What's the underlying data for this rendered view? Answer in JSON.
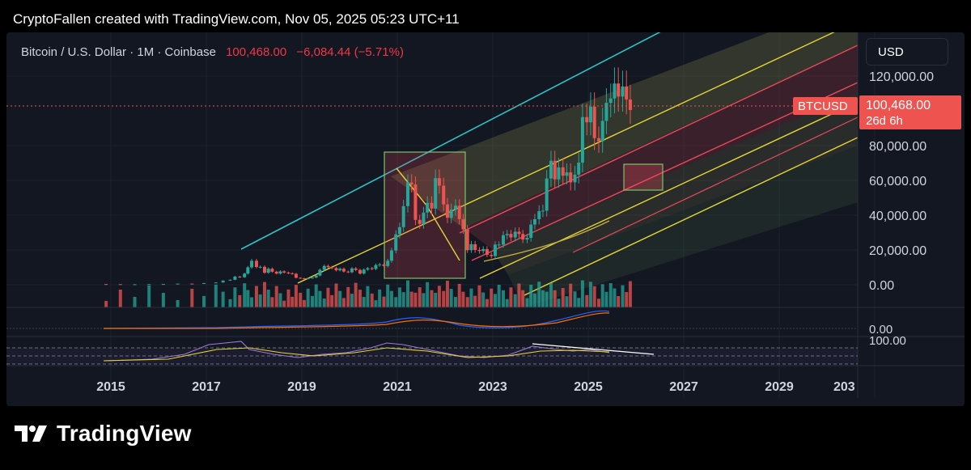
{
  "header": {
    "attribution": "CryptoFallen created with TradingView.com, Nov 05, 2025 05:23 UTC+11"
  },
  "legend": {
    "symbol_desc": "Bitcoin / U.S. Dollar · 1M · Coinbase",
    "last_price": "100,468.00",
    "change": "−6,084.44 (−5.71%)"
  },
  "currency_button": "USD",
  "price_tag": {
    "symbol": "BTCUSD",
    "price": "100,468.00",
    "countdown": "26d 6h"
  },
  "footer": {
    "brand": "TradingView"
  },
  "colors": {
    "up": "#26a69a",
    "down": "#ef5350",
    "cyan_line": "#2fc3c9",
    "yellow_line": "#e5d436",
    "red_line": "#e84b5a",
    "green_box": "#7cc46a"
  },
  "chart_data": {
    "type": "candlestick",
    "interval": "1M",
    "y_axis_labels": [
      "120,000.00",
      "80,000.00",
      "60,000.00",
      "40,000.00",
      "20,000.00",
      "0.00"
    ],
    "x_axis_labels": [
      "2015",
      "2017",
      "2019",
      "2021",
      "2023",
      "2025",
      "2027",
      "2029",
      "203"
    ],
    "ylim": [
      -10000,
      135000
    ],
    "macd_label": "0.00",
    "rsi_label": "100.00",
    "candles": [
      {
        "t": 2014.9,
        "o": 380,
        "c": 320
      },
      {
        "t": 2015.2,
        "o": 320,
        "c": 240
      },
      {
        "t": 2015.5,
        "o": 240,
        "c": 280
      },
      {
        "t": 2015.8,
        "o": 280,
        "c": 350
      },
      {
        "t": 2016.1,
        "o": 350,
        "c": 420
      },
      {
        "t": 2016.4,
        "o": 420,
        "c": 650
      },
      {
        "t": 2016.7,
        "o": 650,
        "c": 610
      },
      {
        "t": 2016.95,
        "o": 610,
        "c": 960
      },
      {
        "t": 2017.2,
        "o": 960,
        "c": 1300
      },
      {
        "t": 2017.35,
        "o": 1300,
        "c": 2400
      },
      {
        "t": 2017.5,
        "o": 2400,
        "c": 2850
      },
      {
        "t": 2017.6,
        "o": 2850,
        "c": 4700
      },
      {
        "t": 2017.7,
        "o": 4700,
        "c": 4300
      },
      {
        "t": 2017.8,
        "o": 4300,
        "c": 6400
      },
      {
        "t": 2017.87,
        "o": 6400,
        "c": 10000
      },
      {
        "t": 2017.95,
        "o": 10000,
        "c": 13800
      },
      {
        "t": 2018.05,
        "o": 13800,
        "c": 10200
      },
      {
        "t": 2018.13,
        "o": 10200,
        "c": 10300
      },
      {
        "t": 2018.22,
        "o": 10300,
        "c": 6900
      },
      {
        "t": 2018.3,
        "o": 6900,
        "c": 9200
      },
      {
        "t": 2018.38,
        "o": 9200,
        "c": 7500
      },
      {
        "t": 2018.47,
        "o": 7500,
        "c": 6400
      },
      {
        "t": 2018.55,
        "o": 6400,
        "c": 7700
      },
      {
        "t": 2018.63,
        "o": 7700,
        "c": 7000
      },
      {
        "t": 2018.72,
        "o": 7000,
        "c": 6600
      },
      {
        "t": 2018.8,
        "o": 6600,
        "c": 6300
      },
      {
        "t": 2018.88,
        "o": 6300,
        "c": 4000
      },
      {
        "t": 2018.97,
        "o": 4000,
        "c": 3700
      },
      {
        "t": 2019.05,
        "o": 3700,
        "c": 3400
      },
      {
        "t": 2019.13,
        "o": 3400,
        "c": 3800
      },
      {
        "t": 2019.22,
        "o": 3800,
        "c": 4100
      },
      {
        "t": 2019.3,
        "o": 4100,
        "c": 5300
      },
      {
        "t": 2019.38,
        "o": 5300,
        "c": 8600
      },
      {
        "t": 2019.47,
        "o": 8600,
        "c": 10800
      },
      {
        "t": 2019.55,
        "o": 10800,
        "c": 10100
      },
      {
        "t": 2019.63,
        "o": 10100,
        "c": 9600
      },
      {
        "t": 2019.72,
        "o": 9600,
        "c": 8300
      },
      {
        "t": 2019.8,
        "o": 8300,
        "c": 9200
      },
      {
        "t": 2019.88,
        "o": 9200,
        "c": 7600
      },
      {
        "t": 2019.97,
        "o": 7600,
        "c": 7200
      },
      {
        "t": 2020.05,
        "o": 7200,
        "c": 9400
      },
      {
        "t": 2020.13,
        "o": 9400,
        "c": 8500
      },
      {
        "t": 2020.22,
        "o": 8500,
        "c": 6400
      },
      {
        "t": 2020.3,
        "o": 6400,
        "c": 8700
      },
      {
        "t": 2020.38,
        "o": 8700,
        "c": 9500
      },
      {
        "t": 2020.47,
        "o": 9500,
        "c": 9100
      },
      {
        "t": 2020.55,
        "o": 9100,
        "c": 11300
      },
      {
        "t": 2020.63,
        "o": 11300,
        "c": 11700
      },
      {
        "t": 2020.72,
        "o": 11700,
        "c": 10800
      },
      {
        "t": 2020.8,
        "o": 10800,
        "c": 13800
      },
      {
        "t": 2020.88,
        "o": 13800,
        "c": 19700
      },
      {
        "t": 2020.97,
        "o": 19700,
        "c": 29000
      },
      {
        "t": 2021.05,
        "o": 29000,
        "c": 33100
      },
      {
        "t": 2021.13,
        "o": 33100,
        "c": 45200
      },
      {
        "t": 2021.22,
        "o": 45200,
        "c": 58800
      },
      {
        "t": 2021.3,
        "o": 58800,
        "c": 57700
      },
      {
        "t": 2021.38,
        "o": 57700,
        "c": 37300
      },
      {
        "t": 2021.47,
        "o": 37300,
        "c": 35000
      },
      {
        "t": 2021.55,
        "o": 35000,
        "c": 41500
      },
      {
        "t": 2021.63,
        "o": 41500,
        "c": 47100
      },
      {
        "t": 2021.72,
        "o": 47100,
        "c": 43800
      },
      {
        "t": 2021.8,
        "o": 43800,
        "c": 61300
      },
      {
        "t": 2021.88,
        "o": 61300,
        "c": 57000
      },
      {
        "t": 2021.97,
        "o": 57000,
        "c": 46200
      },
      {
        "t": 2022.05,
        "o": 46200,
        "c": 38500
      },
      {
        "t": 2022.13,
        "o": 38500,
        "c": 43200
      },
      {
        "t": 2022.22,
        "o": 43200,
        "c": 45500
      },
      {
        "t": 2022.3,
        "o": 45500,
        "c": 37700
      },
      {
        "t": 2022.38,
        "o": 37700,
        "c": 31800
      },
      {
        "t": 2022.47,
        "o": 31800,
        "c": 19900
      },
      {
        "t": 2022.55,
        "o": 19900,
        "c": 23300
      },
      {
        "t": 2022.63,
        "o": 23300,
        "c": 20000
      },
      {
        "t": 2022.72,
        "o": 20000,
        "c": 19400
      },
      {
        "t": 2022.8,
        "o": 19400,
        "c": 20500
      },
      {
        "t": 2022.88,
        "o": 20500,
        "c": 17200
      },
      {
        "t": 2022.97,
        "o": 17200,
        "c": 16500
      },
      {
        "t": 2023.05,
        "o": 16500,
        "c": 23100
      },
      {
        "t": 2023.13,
        "o": 23100,
        "c": 23100
      },
      {
        "t": 2023.22,
        "o": 23100,
        "c": 28500
      },
      {
        "t": 2023.3,
        "o": 28500,
        "c": 29200
      },
      {
        "t": 2023.38,
        "o": 29200,
        "c": 27200
      },
      {
        "t": 2023.47,
        "o": 27200,
        "c": 30500
      },
      {
        "t": 2023.55,
        "o": 30500,
        "c": 29200
      },
      {
        "t": 2023.63,
        "o": 29200,
        "c": 26000
      },
      {
        "t": 2023.72,
        "o": 26000,
        "c": 27000
      },
      {
        "t": 2023.8,
        "o": 27000,
        "c": 34600
      },
      {
        "t": 2023.88,
        "o": 34600,
        "c": 37700
      },
      {
        "t": 2023.97,
        "o": 37700,
        "c": 42300
      },
      {
        "t": 2024.05,
        "o": 42300,
        "c": 42600
      },
      {
        "t": 2024.13,
        "o": 42600,
        "c": 61100
      },
      {
        "t": 2024.22,
        "o": 61100,
        "c": 71300
      },
      {
        "t": 2024.3,
        "o": 71300,
        "c": 60600
      },
      {
        "t": 2024.38,
        "o": 60600,
        "c": 67500
      },
      {
        "t": 2024.47,
        "o": 67500,
        "c": 62700
      },
      {
        "t": 2024.55,
        "o": 62700,
        "c": 64600
      },
      {
        "t": 2024.63,
        "o": 64600,
        "c": 58900
      },
      {
        "t": 2024.72,
        "o": 58900,
        "c": 63300
      },
      {
        "t": 2024.8,
        "o": 63300,
        "c": 70200
      },
      {
        "t": 2024.88,
        "o": 70200,
        "c": 96400
      },
      {
        "t": 2024.97,
        "o": 96400,
        "c": 93400
      },
      {
        "t": 2025.05,
        "o": 93400,
        "c": 102400
      },
      {
        "t": 2025.13,
        "o": 102400,
        "c": 84300
      },
      {
        "t": 2025.22,
        "o": 84300,
        "c": 82500
      },
      {
        "t": 2025.3,
        "o": 82500,
        "c": 94200
      },
      {
        "t": 2025.38,
        "o": 94200,
        "c": 104600
      },
      {
        "t": 2025.47,
        "o": 104600,
        "c": 107100
      },
      {
        "t": 2025.55,
        "o": 107100,
        "c": 115700
      },
      {
        "t": 2025.63,
        "o": 115700,
        "c": 108200
      },
      {
        "t": 2025.72,
        "o": 108200,
        "c": 114000
      },
      {
        "t": 2025.8,
        "o": 114000,
        "c": 106500
      },
      {
        "t": 2025.88,
        "o": 106500,
        "c": 100468
      }
    ]
  }
}
